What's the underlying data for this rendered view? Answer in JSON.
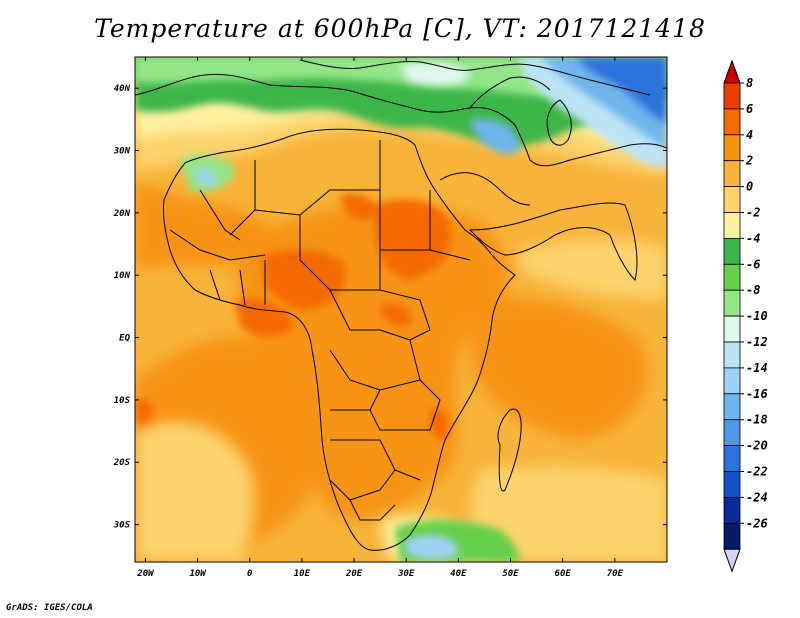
{
  "title": "Temperature at 600hPa [C], VT: 2017121418",
  "credit": "GrADS: IGES/COLA",
  "map": {
    "lon_range": [
      -22,
      80
    ],
    "lat_range": [
      -36,
      45
    ],
    "x_ticks": [
      {
        "lon": -20,
        "label": "20W"
      },
      {
        "lon": -10,
        "label": "10W"
      },
      {
        "lon": 0,
        "label": "0"
      },
      {
        "lon": 10,
        "label": "10E"
      },
      {
        "lon": 20,
        "label": "20E"
      },
      {
        "lon": 30,
        "label": "30E"
      },
      {
        "lon": 40,
        "label": "40E"
      },
      {
        "lon": 50,
        "label": "50E"
      },
      {
        "lon": 60,
        "label": "60E"
      },
      {
        "lon": 70,
        "label": "70E"
      }
    ],
    "y_ticks": [
      {
        "lat": 40,
        "label": "40N"
      },
      {
        "lat": 30,
        "label": "30N"
      },
      {
        "lat": 20,
        "label": "20N"
      },
      {
        "lat": 10,
        "label": "10N"
      },
      {
        "lat": 0,
        "label": "EQ"
      },
      {
        "lat": -10,
        "label": "10S"
      },
      {
        "lat": -20,
        "label": "20S"
      },
      {
        "lat": -30,
        "label": "30S"
      }
    ]
  },
  "colorbar": {
    "labels": [
      "8",
      "6",
      "4",
      "2",
      "0",
      "-2",
      "-4",
      "-6",
      "-8",
      "-10",
      "-12",
      "-14",
      "-16",
      "-18",
      "-20",
      "-22",
      "-24",
      "-26"
    ],
    "colors": [
      "#ee3d00",
      "#f46b00",
      "#f79412",
      "#f7b33a",
      "#fcd36c",
      "#fff1a0",
      "#3cb64a",
      "#66d04a",
      "#93e588",
      "#dff8ec",
      "#bde4f5",
      "#9ed2f2",
      "#6fb5ec",
      "#4d97e6",
      "#2c72dd",
      "#1550c9",
      "#0a2c99",
      "#09186b"
    ],
    "top_arrow_color": "#cd0000",
    "bottom_arrow_color": "#d8d0f4"
  }
}
